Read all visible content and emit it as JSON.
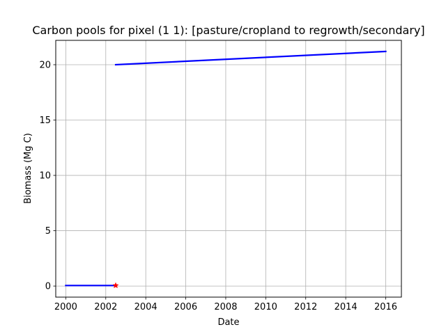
{
  "chart_data": {
    "type": "line",
    "title": "Carbon pools for pixel (1 1): [pasture/cropland to regrowth/secondary]",
    "xlabel": "Date",
    "ylabel": "Biomass (Mg C)",
    "xlim": [
      "1999-07-02",
      "2016-10-14"
    ],
    "ylim": [
      -1.0,
      22.2
    ],
    "x_ticks": [
      {
        "value": "2000-01-01",
        "label": "2000"
      },
      {
        "value": "2002-01-01",
        "label": "2002"
      },
      {
        "value": "2004-01-01",
        "label": "2004"
      },
      {
        "value": "2006-01-01",
        "label": "2006"
      },
      {
        "value": "2008-01-01",
        "label": "2008"
      },
      {
        "value": "2010-01-01",
        "label": "2010"
      },
      {
        "value": "2012-01-01",
        "label": "2012"
      },
      {
        "value": "2014-01-01",
        "label": "2014"
      },
      {
        "value": "2016-01-01",
        "label": "2016"
      }
    ],
    "y_ticks": [
      0,
      5,
      10,
      15,
      20
    ],
    "grid": true,
    "series": [
      {
        "color": "#0000ff",
        "x": [
          "2000-01-01",
          "2002-07-01"
        ],
        "y": [
          0.05,
          0.05
        ]
      },
      {
        "color": "#0000ff",
        "x": [
          "2002-07-01",
          "2016-01-01"
        ],
        "y": [
          20.0,
          21.2
        ]
      }
    ],
    "markers": [
      {
        "x": "2002-07-01",
        "y": 0.05,
        "shape": "star",
        "color": "#ff0000"
      }
    ]
  }
}
